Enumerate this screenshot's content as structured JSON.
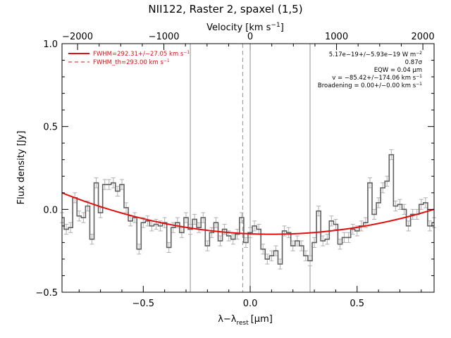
{
  "chart_data": {
    "type": "line",
    "title": "NII122, Raster 2, spaxel (1,5)",
    "xlabel": "λ−λ",
    "xlabel_sub": "rest",
    "xlabel_unit": "[μm]",
    "ylabel": "Flux density [Jy]",
    "top_axis_label": "Velocity [km s",
    "top_axis_label_sup": "−1",
    "top_axis_label_close": "]",
    "xlim": [
      -0.88,
      0.86
    ],
    "ylim": [
      -0.5,
      1.0
    ],
    "top_xlim": [
      -2180,
      2130
    ],
    "x_ticks": [
      -0.5,
      0.0,
      0.5
    ],
    "x_tick_labels": [
      "−0.5",
      "0.0",
      "0.5"
    ],
    "y_ticks": [
      -0.5,
      0.0,
      0.5,
      1.0
    ],
    "y_tick_labels": [
      "−0.5",
      "0.0",
      "0.5",
      "1.0"
    ],
    "top_ticks": [
      -2000,
      -1000,
      0,
      1000,
      2000
    ],
    "top_tick_labels": [
      "−2000",
      "−1000",
      "0",
      "1000",
      "2000"
    ],
    "vlines_solid": [
      -0.28,
      0.0,
      0.28
    ],
    "vline_dashed": -0.035,
    "fit_color": "#e01010",
    "data_color": "#606060",
    "err_color": "#b0b0b0",
    "legend": {
      "placement": "top-left",
      "entries": [
        {
          "style": "solid",
          "label": "FWHM=292.31+/−27.05 km s",
          "sup": "−1"
        },
        {
          "style": "dashed",
          "label": "FWHM_th=293.00 km s",
          "sup": "−1"
        }
      ]
    },
    "annotations": {
      "placement": "top-right",
      "lines": [
        {
          "text": "5.17e−19+/−5.93e−19 W m",
          "sup": "−2"
        },
        {
          "text": "0.87σ",
          "sup": ""
        },
        {
          "text": "EQW = 0.04 μm",
          "sup": ""
        },
        {
          "text": "v = −85.42+/−174.06 km s",
          "sup": "−1"
        },
        {
          "text": "Broadening = 0.00+/−0.00 km s",
          "sup": "−1"
        }
      ]
    },
    "fit": {
      "center": 0.1,
      "min_value": -0.15,
      "coefficient": 0.26
    },
    "spectrum": {
      "x": [
        -0.88,
        -0.86,
        -0.84,
        -0.82,
        -0.8,
        -0.78,
        -0.76,
        -0.74,
        -0.72,
        -0.7,
        -0.68,
        -0.66,
        -0.64,
        -0.62,
        -0.6,
        -0.58,
        -0.56,
        -0.54,
        -0.52,
        -0.5,
        -0.48,
        -0.46,
        -0.44,
        -0.42,
        -0.4,
        -0.38,
        -0.36,
        -0.34,
        -0.32,
        -0.3,
        -0.28,
        -0.26,
        -0.24,
        -0.22,
        -0.2,
        -0.18,
        -0.16,
        -0.14,
        -0.12,
        -0.1,
        -0.08,
        -0.06,
        -0.04,
        -0.02,
        0.0,
        0.02,
        0.04,
        0.06,
        0.08,
        0.1,
        0.12,
        0.14,
        0.16,
        0.18,
        0.2,
        0.22,
        0.24,
        0.26,
        0.28,
        0.3,
        0.32,
        0.34,
        0.36,
        0.38,
        0.4,
        0.42,
        0.44,
        0.46,
        0.48,
        0.5,
        0.52,
        0.54,
        0.56,
        0.58,
        0.6,
        0.62,
        0.64,
        0.66,
        0.68,
        0.7,
        0.72,
        0.74,
        0.76,
        0.78,
        0.8,
        0.82,
        0.84,
        0.86
      ],
      "y": [
        -0.05,
        -0.12,
        -0.11,
        0.07,
        -0.04,
        -0.05,
        0.02,
        -0.18,
        0.16,
        -0.02,
        0.15,
        0.15,
        0.16,
        0.11,
        0.15,
        0.01,
        -0.07,
        -0.05,
        -0.24,
        -0.08,
        -0.07,
        -0.1,
        -0.09,
        -0.1,
        -0.08,
        -0.23,
        -0.11,
        -0.08,
        -0.14,
        -0.05,
        -0.12,
        -0.06,
        -0.11,
        -0.05,
        -0.22,
        -0.14,
        -0.08,
        -0.19,
        -0.12,
        -0.16,
        -0.18,
        -0.15,
        -0.05,
        -0.2,
        -0.14,
        -0.1,
        -0.12,
        -0.24,
        -0.3,
        -0.28,
        -0.25,
        -0.33,
        -0.13,
        -0.14,
        -0.22,
        -0.19,
        -0.22,
        -0.28,
        -0.31,
        -0.2,
        -0.01,
        -0.19,
        -0.18,
        -0.07,
        -0.09,
        -0.21,
        -0.17,
        -0.17,
        -0.12,
        -0.13,
        -0.1,
        -0.08,
        0.16,
        -0.03,
        0.04,
        0.13,
        0.17,
        0.33,
        0.02,
        0.03,
        0.0,
        -0.1,
        -0.03,
        -0.03,
        0.03,
        0.04,
        -0.1,
        -0.08
      ],
      "err": 0.03
    }
  }
}
